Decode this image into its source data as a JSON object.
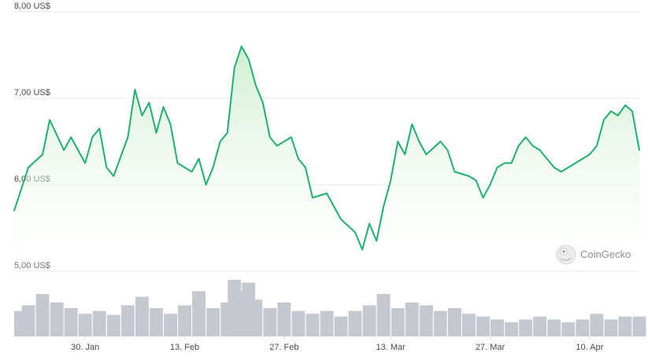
{
  "chart_data": {
    "type": "line",
    "y_axis": {
      "ticks": [
        8.0,
        7.0,
        6.0,
        5.0
      ],
      "tick_labels": [
        "8,00 US$",
        "7,00 US$",
        "6,00 US$",
        "5,00 US$"
      ],
      "ylim": [
        5.0,
        8.0
      ]
    },
    "x_axis": {
      "range": [
        "2024-01-20",
        "2024-04-17"
      ],
      "ticks": [
        "2024-01-30",
        "2024-02-13",
        "2024-02-27",
        "2024-03-13",
        "2024-03-27",
        "2024-04-10"
      ],
      "tick_labels": [
        "30. Jan",
        "13. Feb",
        "27. Feb",
        "13. Mar",
        "27. Mar",
        "10. Apr"
      ]
    },
    "grid": true,
    "colors": {
      "line": "#1db16f",
      "area_top": "#d7f0d3",
      "volume": "#c5c8cf"
    },
    "price_series": {
      "x": [
        "2024-01-20",
        "2024-01-22",
        "2024-01-24",
        "2024-01-25",
        "2024-01-27",
        "2024-01-28",
        "2024-01-30",
        "2024-01-31",
        "2024-02-01",
        "2024-02-02",
        "2024-02-03",
        "2024-02-05",
        "2024-02-06",
        "2024-02-07",
        "2024-02-08",
        "2024-02-09",
        "2024-02-10",
        "2024-02-11",
        "2024-02-12",
        "2024-02-13",
        "2024-02-14",
        "2024-02-15",
        "2024-02-16",
        "2024-02-17",
        "2024-02-18",
        "2024-02-19",
        "2024-02-20",
        "2024-02-21",
        "2024-02-22",
        "2024-02-23",
        "2024-02-24",
        "2024-02-25",
        "2024-02-26",
        "2024-02-27",
        "2024-02-28",
        "2024-02-29",
        "2024-03-01",
        "2024-03-02",
        "2024-03-04",
        "2024-03-06",
        "2024-03-08",
        "2024-03-09",
        "2024-03-10",
        "2024-03-11",
        "2024-03-12",
        "2024-03-13",
        "2024-03-14",
        "2024-03-15",
        "2024-03-16",
        "2024-03-17",
        "2024-03-18",
        "2024-03-20",
        "2024-03-21",
        "2024-03-22",
        "2024-03-24",
        "2024-03-25",
        "2024-03-26",
        "2024-03-27",
        "2024-03-28",
        "2024-03-29",
        "2024-03-30",
        "2024-03-31",
        "2024-04-01",
        "2024-04-02",
        "2024-04-03",
        "2024-04-05",
        "2024-04-06",
        "2024-04-07",
        "2024-04-08",
        "2024-04-10",
        "2024-04-11",
        "2024-04-12",
        "2024-04-13",
        "2024-04-14",
        "2024-04-15",
        "2024-04-16",
        "2024-04-17"
      ],
      "y": [
        5.7,
        6.2,
        6.35,
        6.75,
        6.4,
        6.55,
        6.25,
        6.55,
        6.65,
        6.2,
        6.1,
        6.55,
        7.1,
        6.8,
        6.95,
        6.6,
        6.9,
        6.7,
        6.25,
        6.2,
        6.15,
        6.3,
        6.0,
        6.2,
        6.5,
        6.6,
        7.35,
        7.6,
        7.45,
        7.15,
        6.95,
        6.55,
        6.45,
        6.5,
        6.55,
        6.3,
        6.2,
        5.85,
        5.9,
        5.6,
        5.45,
        5.25,
        5.55,
        5.35,
        5.75,
        6.05,
        6.5,
        6.35,
        6.7,
        6.5,
        6.35,
        6.5,
        6.4,
        6.15,
        6.1,
        6.05,
        5.85,
        6.0,
        6.2,
        6.25,
        6.25,
        6.45,
        6.55,
        6.45,
        6.4,
        6.2,
        6.15,
        6.2,
        6.25,
        6.35,
        6.45,
        6.75,
        6.85,
        6.8,
        6.92,
        6.85,
        6.4
      ]
    },
    "volume_series": {
      "x": [
        "2024-01-20",
        "2024-01-22",
        "2024-01-24",
        "2024-01-26",
        "2024-01-28",
        "2024-01-30",
        "2024-02-01",
        "2024-02-03",
        "2024-02-05",
        "2024-02-07",
        "2024-02-09",
        "2024-02-11",
        "2024-02-13",
        "2024-02-15",
        "2024-02-17",
        "2024-02-19",
        "2024-02-20",
        "2024-02-21",
        "2024-02-22",
        "2024-02-23",
        "2024-02-25",
        "2024-02-27",
        "2024-02-29",
        "2024-03-02",
        "2024-03-04",
        "2024-03-06",
        "2024-03-08",
        "2024-03-10",
        "2024-03-12",
        "2024-03-14",
        "2024-03-16",
        "2024-03-18",
        "2024-03-20",
        "2024-03-22",
        "2024-03-24",
        "2024-03-26",
        "2024-03-28",
        "2024-03-30",
        "2024-04-01",
        "2024-04-03",
        "2024-04-05",
        "2024-04-07",
        "2024-04-09",
        "2024-04-11",
        "2024-04-13",
        "2024-04-15",
        "2024-04-17"
      ],
      "relative": [
        0.45,
        0.55,
        0.75,
        0.6,
        0.5,
        0.4,
        0.45,
        0.38,
        0.55,
        0.7,
        0.5,
        0.4,
        0.55,
        0.8,
        0.5,
        0.6,
        1.0,
        0.8,
        0.95,
        0.65,
        0.5,
        0.6,
        0.45,
        0.4,
        0.45,
        0.35,
        0.45,
        0.55,
        0.75,
        0.5,
        0.6,
        0.55,
        0.45,
        0.5,
        0.4,
        0.35,
        0.3,
        0.25,
        0.3,
        0.35,
        0.3,
        0.25,
        0.3,
        0.4,
        0.3,
        0.35,
        0.35
      ]
    }
  },
  "watermark": {
    "label": "CoinGecko",
    "icon": "gecko-logo-icon"
  }
}
